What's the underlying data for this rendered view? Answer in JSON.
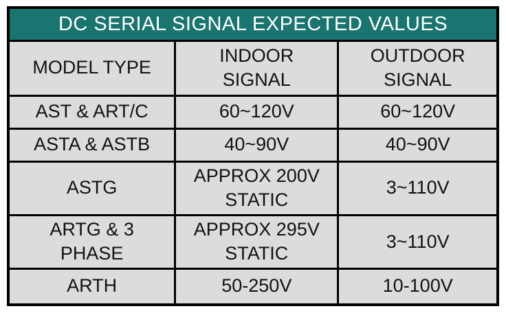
{
  "title": "DC SERIAL SIGNAL EXPECTED VALUES",
  "table": {
    "headers": {
      "model": "MODEL TYPE",
      "indoor": "INDOOR\nSIGNAL",
      "outdoor": "OUTDOOR\nSIGNAL"
    },
    "rows": [
      {
        "model": "AST & ART/C",
        "indoor": "60~120V",
        "outdoor": "60~120V"
      },
      {
        "model": "ASTA & ASTB",
        "indoor": "40~90V",
        "outdoor": "40~90V"
      },
      {
        "model": "ASTG",
        "indoor": "APPROX 200V\nSTATIC",
        "outdoor": "3~110V"
      },
      {
        "model": "ARTG & 3\nPHASE",
        "indoor": "APPROX 295V\nSTATIC",
        "outdoor": "3~110V"
      },
      {
        "model": "ARTH",
        "indoor": "50-250V",
        "outdoor": "10-100V"
      }
    ]
  },
  "colors": {
    "title_bg": "#1a7470",
    "title_text": "#ffffff",
    "cell_bg": "#dcdcdc",
    "border": "#000000"
  }
}
